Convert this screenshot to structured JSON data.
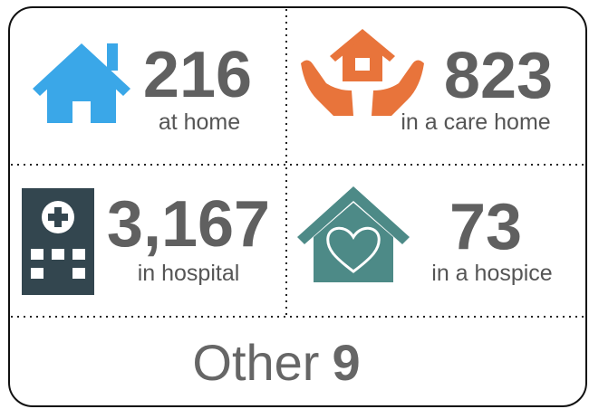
{
  "tiles": [
    {
      "number": "216",
      "label": "at home"
    },
    {
      "number": "823",
      "label": "in a care home"
    },
    {
      "number": "3,167",
      "label": "in hospital"
    },
    {
      "number": "73",
      "label": "in a hospice"
    }
  ],
  "other": {
    "label": "Other",
    "number": "9"
  }
}
